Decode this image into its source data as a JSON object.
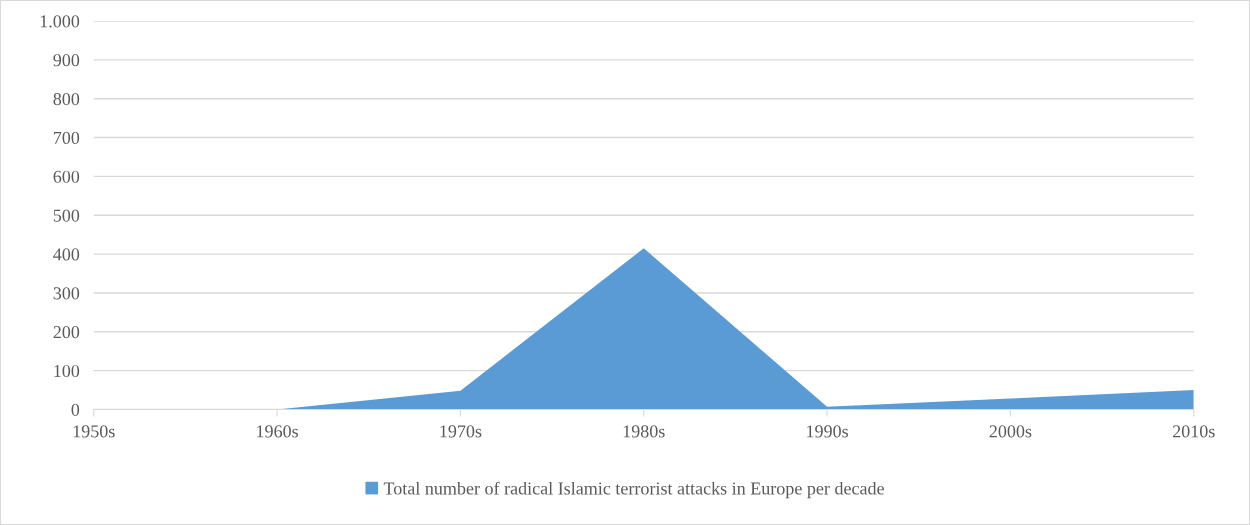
{
  "chart_data": {
    "type": "area",
    "categories": [
      "1950s",
      "1960s",
      "1970s",
      "1980s",
      "1990s",
      "2000s",
      "2010s"
    ],
    "series": [
      {
        "name": "Total number of radical Islamic terrorist attacks in Europe per decade",
        "color": "#5b9bd5",
        "values": [
          0,
          0,
          48,
          415,
          7,
          28,
          50
        ]
      }
    ],
    "ylim": [
      0,
      1000
    ],
    "yticks": [
      0,
      100,
      200,
      300,
      400,
      500,
      600,
      700,
      800,
      900,
      {
        "value": 1000,
        "label": "1.000"
      }
    ],
    "grid": "y",
    "legend": "bottom"
  }
}
